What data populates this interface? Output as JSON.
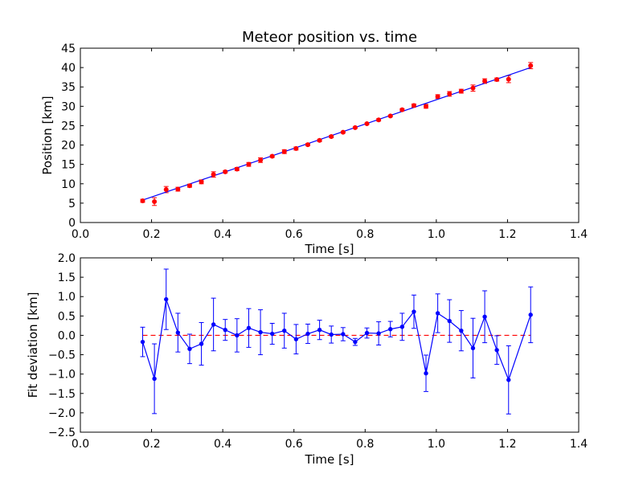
{
  "chart_data": [
    {
      "type": "scatter",
      "title": "Meteor position vs. time",
      "xlabel": "Time [s]",
      "ylabel": "Position [km]",
      "xlim": [
        0.0,
        1.4
      ],
      "ylim": [
        0,
        45
      ],
      "xticks": [
        "0.0",
        "0.2",
        "0.4",
        "0.6",
        "0.8",
        "1.0",
        "1.2",
        "1.4"
      ],
      "yticks": [
        "0",
        "5",
        "10",
        "15",
        "20",
        "25",
        "30",
        "35",
        "40",
        "45"
      ],
      "grid": false,
      "colors": {
        "points": "#ff0000",
        "fit": "#0000ff",
        "errorbars": "#ff0000"
      },
      "series": [
        {
          "kind": "points-with-errorbars",
          "x": [
            0.175,
            0.208,
            0.241,
            0.274,
            0.307,
            0.34,
            0.374,
            0.407,
            0.44,
            0.473,
            0.506,
            0.539,
            0.573,
            0.606,
            0.639,
            0.672,
            0.705,
            0.738,
            0.772,
            0.805,
            0.838,
            0.871,
            0.904,
            0.937,
            0.971,
            1.004,
            1.037,
            1.07,
            1.103,
            1.136,
            1.17,
            1.203,
            1.265
          ],
          "y": [
            5.6,
            5.4,
            8.5,
            8.6,
            9.5,
            10.5,
            12.4,
            13.1,
            13.8,
            15.0,
            16.1,
            17.1,
            18.3,
            19.1,
            20.1,
            21.2,
            22.2,
            23.3,
            24.5,
            25.5,
            26.5,
            27.5,
            29.1,
            30.2,
            30.0,
            32.5,
            33.2,
            33.9,
            34.7,
            36.5,
            36.9,
            37.0,
            40.5
          ],
          "yerr": [
            0.4,
            1.0,
            0.8,
            0.5,
            0.4,
            0.5,
            0.7,
            0.3,
            0.4,
            0.5,
            0.6,
            0.3,
            0.5,
            0.4,
            0.3,
            0.3,
            0.3,
            0.2,
            0.2,
            0.2,
            0.3,
            0.2,
            0.3,
            0.4,
            0.5,
            0.5,
            0.6,
            0.5,
            0.8,
            0.6,
            0.4,
            0.9,
            0.8
          ]
        },
        {
          "kind": "fit-line",
          "x": [
            0.175,
            1.265
          ],
          "y": [
            5.8,
            40.0
          ]
        }
      ]
    },
    {
      "type": "line",
      "xlabel": "Time [s]",
      "ylabel": "Fit deviation [km]",
      "xlim": [
        0.0,
        1.4
      ],
      "ylim": [
        -2.5,
        2.0
      ],
      "xticks": [
        "0.0",
        "0.2",
        "0.4",
        "0.6",
        "0.8",
        "1.0",
        "1.2",
        "1.4"
      ],
      "yticks": [
        "−2.5",
        "−2.0",
        "−1.5",
        "−1.0",
        "−0.5",
        "0.0",
        "0.5",
        "1.0",
        "1.5",
        "2.0"
      ],
      "grid": false,
      "colors": {
        "line": "#0000ff",
        "zero": "#ff0000"
      },
      "zero_line": {
        "style": "dashed",
        "y": 0.0
      },
      "series": [
        {
          "kind": "line-with-errorbars",
          "x": [
            0.175,
            0.208,
            0.241,
            0.274,
            0.307,
            0.34,
            0.374,
            0.407,
            0.44,
            0.473,
            0.506,
            0.539,
            0.573,
            0.606,
            0.639,
            0.672,
            0.705,
            0.738,
            0.772,
            0.805,
            0.838,
            0.871,
            0.904,
            0.937,
            0.971,
            1.004,
            1.037,
            1.07,
            1.103,
            1.136,
            1.17,
            1.203,
            1.265
          ],
          "y": [
            -0.17,
            -1.12,
            0.93,
            0.07,
            -0.35,
            -0.22,
            0.28,
            0.14,
            0.0,
            0.19,
            0.08,
            0.04,
            0.12,
            -0.1,
            0.04,
            0.14,
            0.02,
            0.03,
            -0.17,
            0.06,
            0.05,
            0.16,
            0.22,
            0.61,
            -0.98,
            0.57,
            0.37,
            0.12,
            -0.33,
            0.48,
            -0.38,
            -1.15,
            0.53
          ],
          "yerr": [
            0.38,
            0.9,
            0.78,
            0.5,
            0.38,
            0.55,
            0.68,
            0.27,
            0.43,
            0.5,
            0.58,
            0.27,
            0.45,
            0.38,
            0.25,
            0.25,
            0.22,
            0.17,
            0.09,
            0.13,
            0.3,
            0.2,
            0.35,
            0.43,
            0.47,
            0.5,
            0.55,
            0.52,
            0.77,
            0.67,
            0.37,
            0.88,
            0.72
          ]
        }
      ]
    }
  ]
}
